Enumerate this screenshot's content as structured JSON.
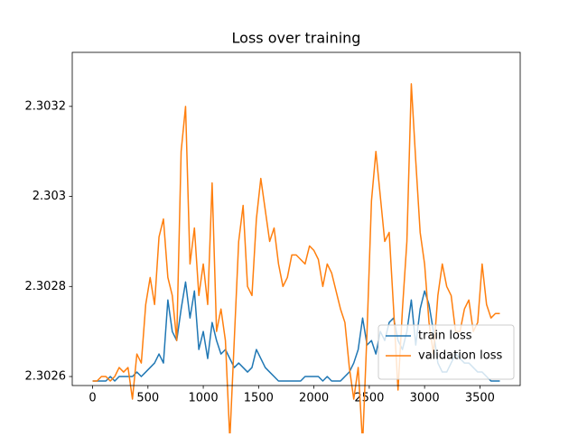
{
  "chart_data": {
    "type": "line",
    "title": "Loss over training",
    "x": [
      0,
      40,
      80,
      120,
      160,
      200,
      240,
      280,
      320,
      360,
      400,
      440,
      480,
      520,
      560,
      600,
      640,
      680,
      720,
      760,
      800,
      840,
      880,
      920,
      960,
      1000,
      1040,
      1080,
      1120,
      1160,
      1200,
      1240,
      1280,
      1320,
      1360,
      1400,
      1440,
      1480,
      1520,
      1560,
      1600,
      1640,
      1680,
      1720,
      1760,
      1800,
      1840,
      1880,
      1920,
      1960,
      2000,
      2040,
      2080,
      2120,
      2160,
      2200,
      2240,
      2280,
      2320,
      2360,
      2400,
      2440,
      2480,
      2520,
      2560,
      2600,
      2640,
      2680,
      2720,
      2760,
      2800,
      2840,
      2880,
      2920,
      2960,
      3000,
      3040,
      3080,
      3120,
      3160,
      3200,
      3240,
      3280,
      3320,
      3360,
      3400,
      3440,
      3480,
      3520,
      3560,
      3600,
      3640,
      3680
    ],
    "series": [
      {
        "name": "train loss",
        "color": "#1f77b4",
        "values": [
          2.30259,
          2.30259,
          2.30259,
          2.30259,
          2.3026,
          2.30259,
          2.3026,
          2.3026,
          2.3026,
          2.3026,
          2.30261,
          2.3026,
          2.30261,
          2.30262,
          2.30263,
          2.30265,
          2.30263,
          2.30277,
          2.3027,
          2.30268,
          2.30275,
          2.30281,
          2.30273,
          2.30279,
          2.30266,
          2.3027,
          2.30264,
          2.30272,
          2.30268,
          2.30265,
          2.30266,
          2.30264,
          2.30262,
          2.30263,
          2.30262,
          2.30261,
          2.30262,
          2.30266,
          2.30264,
          2.30262,
          2.30261,
          2.3026,
          2.30259,
          2.30259,
          2.30259,
          2.30259,
          2.30259,
          2.30259,
          2.3026,
          2.3026,
          2.3026,
          2.3026,
          2.30259,
          2.3026,
          2.30259,
          2.30259,
          2.30259,
          2.3026,
          2.30261,
          2.30263,
          2.30266,
          2.30273,
          2.30267,
          2.30268,
          2.30265,
          2.3027,
          2.30268,
          2.30272,
          2.30273,
          2.30268,
          2.30266,
          2.3027,
          2.30277,
          2.30267,
          2.30275,
          2.30279,
          2.30276,
          2.3027,
          2.30263,
          2.30261,
          2.30261,
          2.30263,
          2.30265,
          2.30264,
          2.30263,
          2.30263,
          2.30262,
          2.30261,
          2.30261,
          2.3026,
          2.30259,
          2.30259,
          2.30259
        ]
      },
      {
        "name": "validation loss",
        "color": "#ff7f0e",
        "values": [
          2.30259,
          2.30259,
          2.3026,
          2.3026,
          2.30259,
          2.3026,
          2.30262,
          2.30261,
          2.30262,
          2.30255,
          2.30265,
          2.30263,
          2.30276,
          2.30282,
          2.30276,
          2.30291,
          2.30295,
          2.30282,
          2.30278,
          2.30268,
          2.3031,
          2.3032,
          2.30285,
          2.30293,
          2.30278,
          2.30285,
          2.30276,
          2.30303,
          2.3027,
          2.30275,
          2.30268,
          2.30246,
          2.30268,
          2.3029,
          2.30298,
          2.3028,
          2.30278,
          2.30295,
          2.30304,
          2.30297,
          2.3029,
          2.30293,
          2.30285,
          2.3028,
          2.30282,
          2.30287,
          2.30287,
          2.30286,
          2.30285,
          2.30289,
          2.30288,
          2.30286,
          2.3028,
          2.30285,
          2.30283,
          2.30279,
          2.30275,
          2.30272,
          2.30262,
          2.30255,
          2.30262,
          2.30245,
          2.3027,
          2.30299,
          2.3031,
          2.303,
          2.3029,
          2.30292,
          2.30275,
          2.30257,
          2.30275,
          2.3029,
          2.30325,
          2.30308,
          2.30292,
          2.30285,
          2.30272,
          2.30265,
          2.30278,
          2.30285,
          2.3028,
          2.30278,
          2.3027,
          2.3027,
          2.30275,
          2.30277,
          2.3027,
          2.30272,
          2.30285,
          2.30276,
          2.30273,
          2.30274,
          2.30274
        ]
      }
    ],
    "xlim": [
      -184,
      3864
    ],
    "xticks": [
      0,
      500,
      1000,
      1500,
      2000,
      2500,
      3000,
      3500
    ],
    "ylim": [
      2.30258,
      2.30332
    ],
    "yticks": [
      2.3026,
      2.3028,
      2.303,
      2.3032
    ],
    "legend": "lower right"
  }
}
